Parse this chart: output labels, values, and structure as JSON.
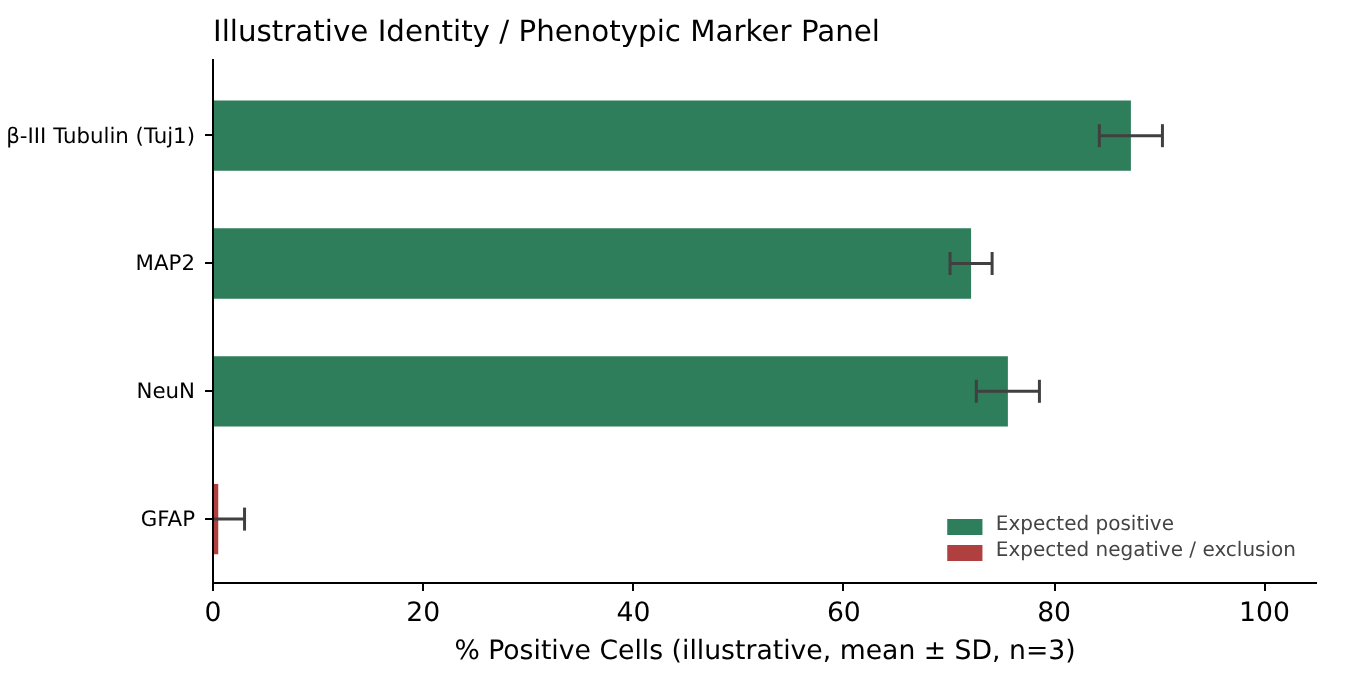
{
  "chart_data": {
    "type": "bar",
    "orientation": "horizontal",
    "title": "Illustrative Identity / Phenotypic Marker Panel",
    "xlabel": "% Positive Cells (illustrative, mean ± SD, n=3)",
    "categories": [
      "β-III Tubulin (Tuj1)",
      "MAP2",
      "NeuN",
      "GFAP"
    ],
    "series": [
      {
        "name": "Expected positive",
        "color": "#2e7d5b",
        "values": [
          87.3,
          72.1,
          75.6,
          null
        ],
        "errors": [
          3,
          2,
          3,
          null
        ]
      },
      {
        "name": "Expected negative / exclusion",
        "color": "#b04040",
        "values": [
          null,
          null,
          null,
          0.5
        ],
        "errors": [
          null,
          null,
          null,
          2.5
        ]
      }
    ],
    "xlim": [
      0,
      105
    ],
    "xticks": [
      0,
      20,
      40,
      60,
      80,
      100
    ],
    "grid": false,
    "legend": "bottom right"
  }
}
